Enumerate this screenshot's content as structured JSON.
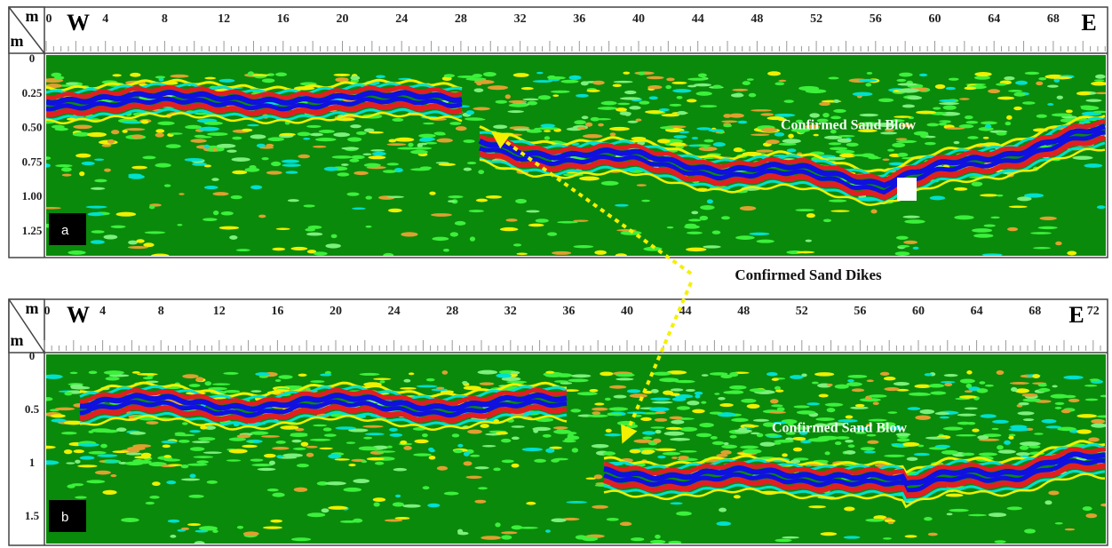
{
  "panels": [
    {
      "label": "a",
      "corner_top": "m",
      "corner_bottom": "m",
      "west": "W",
      "east": "E",
      "x_ticks": [
        "0",
        "4",
        "8",
        "12",
        "16",
        "20",
        "24",
        "28",
        "32",
        "36",
        "40",
        "44",
        "48",
        "52",
        "56",
        "60",
        "64",
        "68"
      ],
      "y_ticks": [
        "0",
        "0.25",
        "0.50",
        "0.75",
        "1.00",
        "1.25"
      ],
      "annotation": "Confirmed Sand Blow"
    },
    {
      "label": "b",
      "corner_top": "m",
      "corner_bottom": "m",
      "west": "W",
      "east": "E",
      "x_ticks": [
        "0",
        "4",
        "8",
        "12",
        "16",
        "20",
        "24",
        "28",
        "32",
        "36",
        "40",
        "44",
        "48",
        "52",
        "56",
        "60",
        "64",
        "68",
        "72"
      ],
      "y_ticks": [
        "0",
        "0.5",
        "1",
        "1.5"
      ],
      "annotation": "Confirmed Sand Blow"
    }
  ],
  "callout": "Confirmed Sand Dikes"
}
